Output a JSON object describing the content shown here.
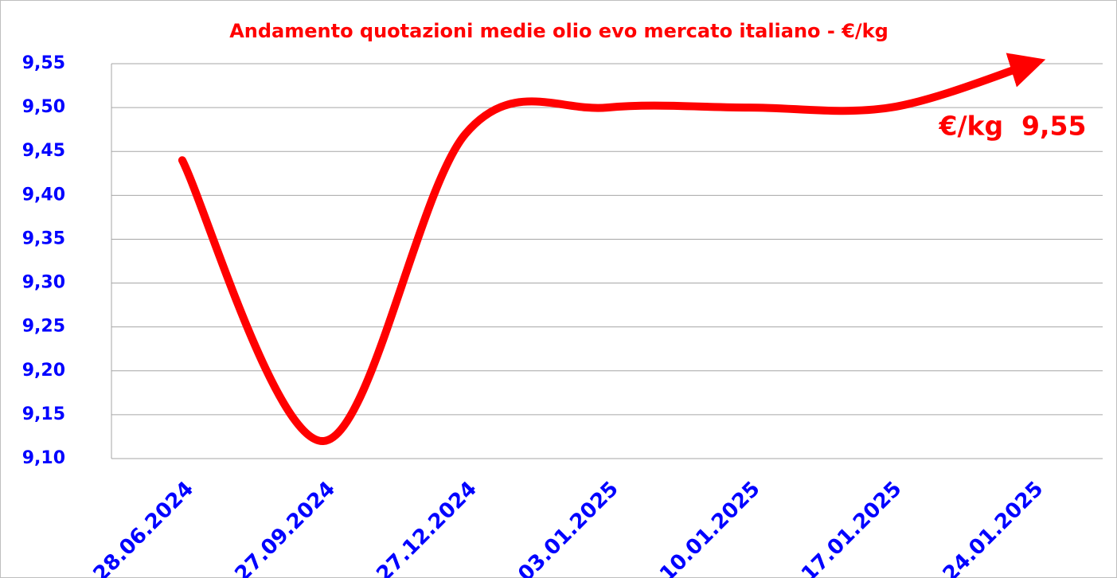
{
  "chart_data": {
    "type": "line",
    "title": "Andamento quotazioni medie olio evo mercato italiano - €/kg",
    "annotation": "€/kg  9,55",
    "categories": [
      "28.06.2024",
      "27.09.2024",
      "27.12.2024",
      "03.01.2025",
      "10.01.2025",
      "17.01.2025",
      "24.01.2025"
    ],
    "series": [
      {
        "name": "€/kg",
        "color": "#ff0000",
        "values": [
          9.44,
          9.12,
          9.47,
          9.5,
          9.5,
          9.5,
          9.55
        ]
      }
    ],
    "ylim": [
      9.1,
      9.55
    ],
    "yticks": [
      {
        "value": 9.1,
        "label": "9,10"
      },
      {
        "value": 9.15,
        "label": "9,15"
      },
      {
        "value": 9.2,
        "label": "9,20"
      },
      {
        "value": 9.25,
        "label": "9,25"
      },
      {
        "value": 9.3,
        "label": "9,30"
      },
      {
        "value": 9.35,
        "label": "9,35"
      },
      {
        "value": 9.4,
        "label": "9,40"
      },
      {
        "value": 9.45,
        "label": "9,45"
      },
      {
        "value": 9.5,
        "label": "9,50"
      },
      {
        "value": 9.55,
        "label": "9,55"
      }
    ],
    "grid": true,
    "smooth": true
  }
}
